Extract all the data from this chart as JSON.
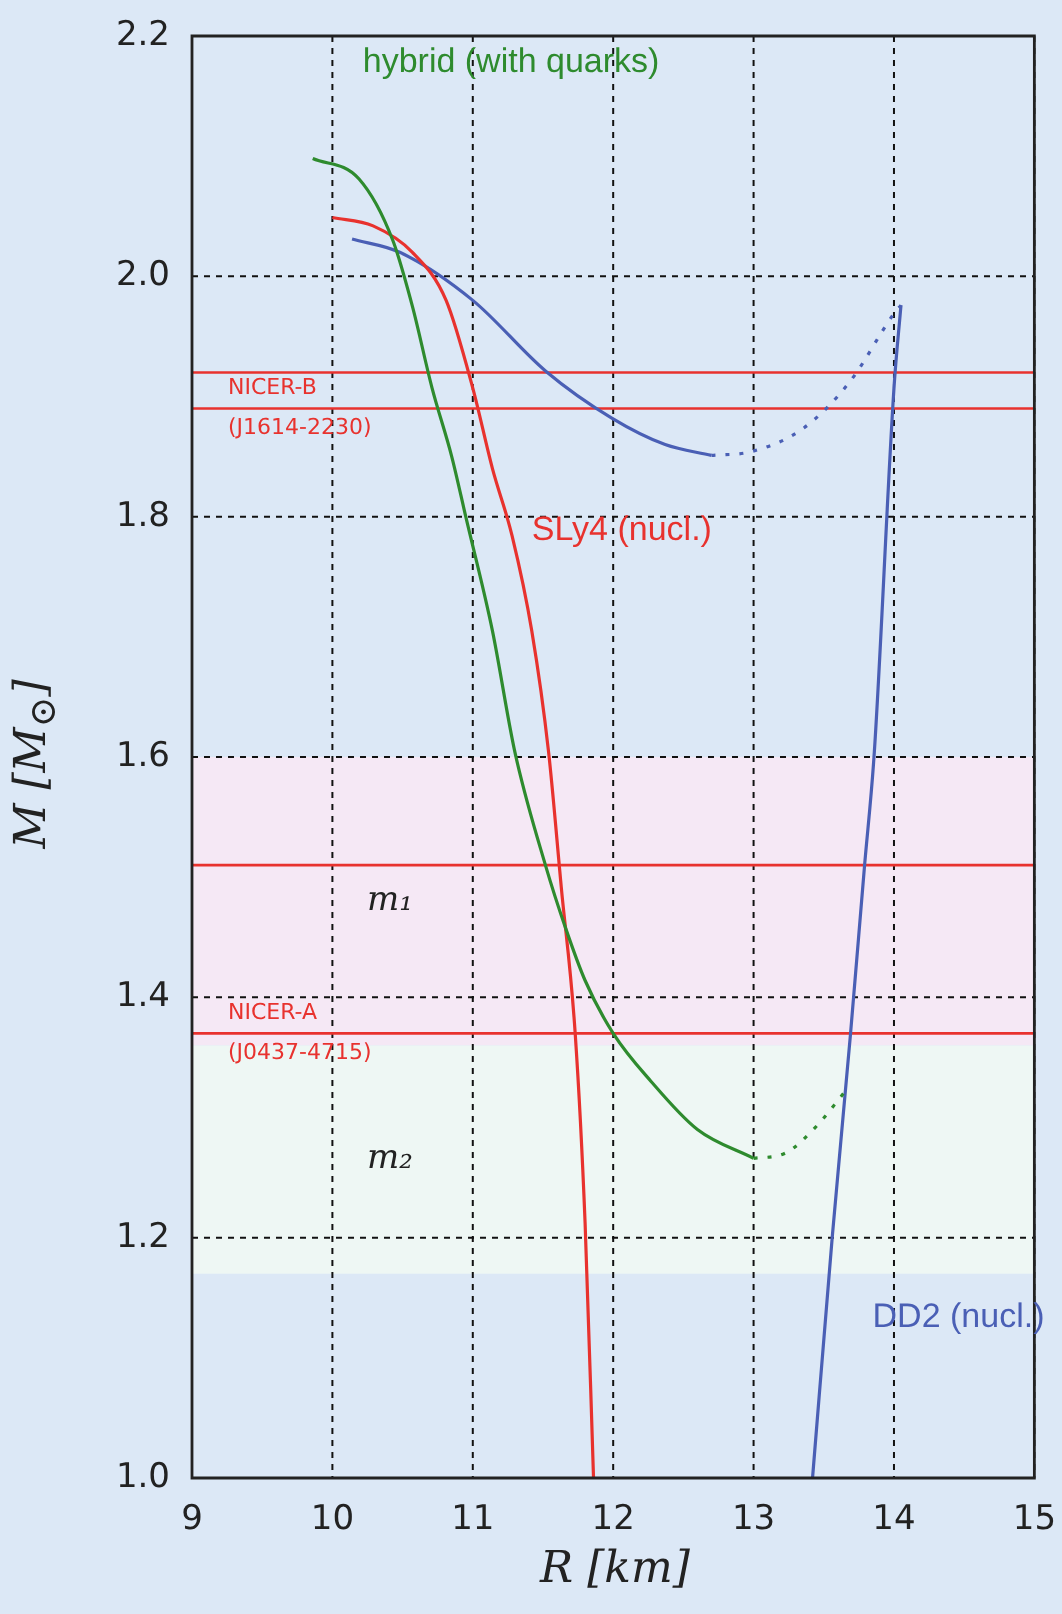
{
  "chart_data": {
    "type": "line",
    "xlabel": "R [km]",
    "ylabel": "M [M$_{⊙}$]",
    "xlim": [
      9,
      15
    ],
    "xticks": [
      9,
      10,
      11,
      12,
      13,
      14,
      15
    ],
    "ylim": [
      1.0,
      2.2
    ],
    "yticks": [
      {
        "value": 1.0,
        "label": "1.0"
      },
      1.2,
      1.4,
      1.6,
      1.8,
      {
        "value": 2.0,
        "label": "2.0"
      },
      2.2
    ],
    "grid": true,
    "legend": false,
    "marker": "none",
    "series": [
      {
        "name": "hybrid (with quarks)",
        "color": "#2e8b2e",
        "line_style": "solid",
        "x": [
          9.86,
          10.19,
          10.43,
          10.57,
          10.71,
          10.85,
          10.95,
          11.14,
          11.3,
          11.52,
          11.66,
          11.8,
          12.0,
          12.27,
          12.6,
          13.0
        ],
        "values": [
          2.098,
          2.081,
          2.03,
          1.975,
          1.907,
          1.85,
          1.8,
          1.705,
          1.604,
          1.509,
          1.458,
          1.414,
          1.37,
          1.33,
          1.29,
          1.266
        ]
      },
      {
        "color": "#2e8b2e",
        "line_style": "dotted",
        "x": [
          13.0,
          13.22,
          13.45,
          13.64
        ],
        "values": [
          1.266,
          1.27,
          1.293,
          1.32
        ]
      },
      {
        "name": "SLy4 (nucl.)",
        "color": "#e8322e",
        "line_style": "solid",
        "x": [
          10.0,
          10.29,
          10.57,
          10.81,
          11.0,
          11.14,
          11.28,
          11.42,
          11.54,
          11.63,
          11.73,
          11.8,
          11.86
        ],
        "values": [
          2.049,
          2.042,
          2.02,
          1.98,
          1.907,
          1.84,
          1.784,
          1.705,
          1.604,
          1.492,
          1.369,
          1.212,
          1.0
        ]
      },
      {
        "color": "#4a5fb5",
        "line_style": "solid",
        "x": [
          10.14,
          10.48,
          11.0,
          11.52,
          11.99,
          12.37,
          12.7
        ],
        "values": [
          2.031,
          2.02,
          1.98,
          1.921,
          1.882,
          1.86,
          1.851
        ]
      },
      {
        "color": "#4a5fb5",
        "line_style": "dotted",
        "x": [
          12.7,
          12.98,
          13.36,
          13.69,
          14.0,
          14.05
        ],
        "values": [
          1.851,
          1.854,
          1.874,
          1.913,
          1.969,
          1.976
        ]
      },
      {
        "name": "DD2 (nucl.)",
        "color": "#4a5fb5",
        "line_style": "solid",
        "x": [
          14.05,
          14.0,
          13.86,
          13.79,
          13.69,
          13.56,
          13.42
        ],
        "values": [
          1.976,
          1.907,
          1.604,
          1.509,
          1.369,
          1.2,
          1.0
        ]
      }
    ],
    "ref_lines": [
      {
        "axis": "y",
        "value": 1.92,
        "color": "#e8322e"
      },
      {
        "axis": "y",
        "value": 1.89,
        "color": "#e8322e",
        "label": "NICER-B (J1614-2230)"
      },
      {
        "axis": "y",
        "value": 1.51,
        "color": "#e8322e"
      },
      {
        "axis": "y",
        "value": 1.37,
        "color": "#e8322e",
        "label": "NICER-A (J0437-4715)"
      }
    ],
    "bands": [
      {
        "axis": "y",
        "from": 1.36,
        "to": 1.6,
        "label": "m₁",
        "color": "#f5e8f5"
      },
      {
        "axis": "y",
        "from": 1.17,
        "to": 1.36,
        "label": "m₂",
        "color": "#eef7f4"
      }
    ]
  }
}
